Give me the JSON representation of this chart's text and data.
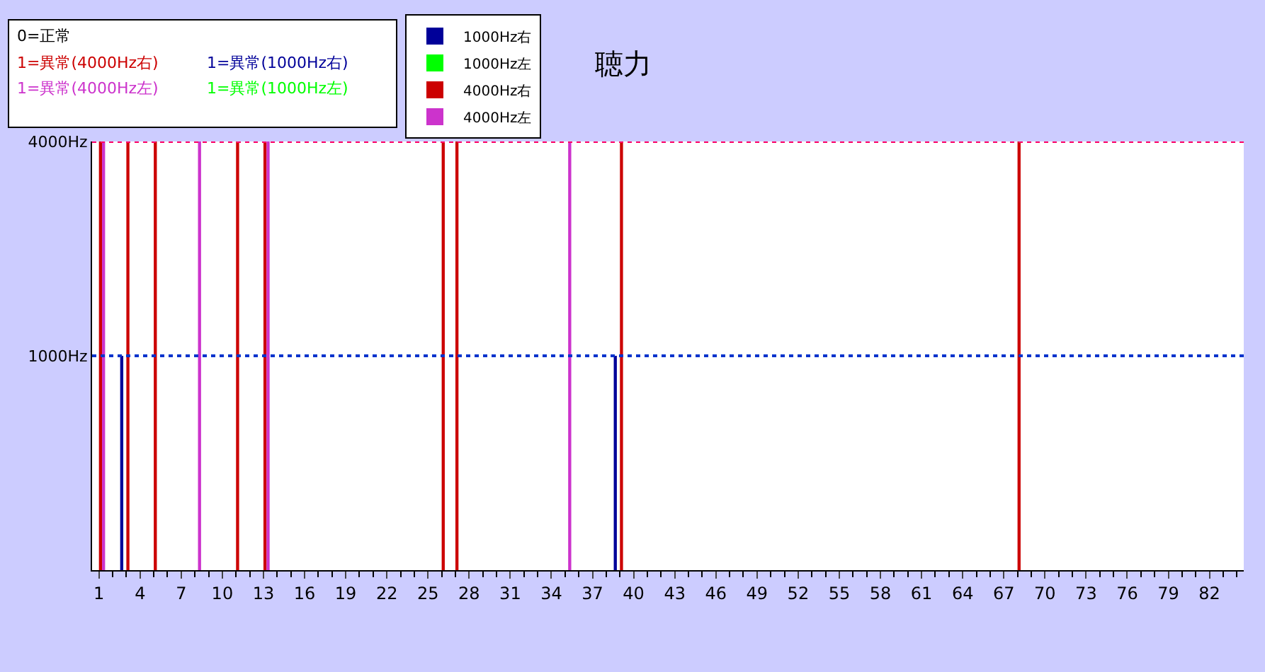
{
  "chart_data": {
    "type": "bar",
    "title": "聴力",
    "categories": [
      "1",
      null,
      null,
      "4",
      null,
      null,
      "7",
      null,
      null,
      "10",
      null,
      null,
      "13",
      null,
      null,
      "16",
      null,
      null,
      "19",
      null,
      null,
      "22",
      null,
      null,
      "25",
      null,
      null,
      "28",
      null,
      null,
      "31",
      null,
      null,
      "34",
      null,
      null,
      "37",
      null,
      null,
      "40",
      null,
      null,
      "43",
      null,
      null,
      "46",
      null,
      null,
      "49",
      null,
      null,
      "52",
      null,
      null,
      "55",
      null,
      null,
      "58",
      null,
      null,
      "61",
      null,
      null,
      "64",
      null,
      null,
      "67",
      null,
      null,
      "70",
      null,
      null,
      "73",
      null,
      null,
      "76",
      null,
      null,
      "79",
      null,
      null,
      "82",
      null,
      null
    ],
    "series": [
      {
        "name": "1000Hz右",
        "color": "#000099",
        "values": [
          null,
          null,
          1000,
          null,
          null,
          null,
          null,
          null,
          null,
          null,
          null,
          null,
          null,
          null,
          null,
          null,
          null,
          null,
          null,
          null,
          null,
          null,
          null,
          null,
          null,
          null,
          null,
          null,
          null,
          null,
          null,
          null,
          null,
          null,
          null,
          null,
          null,
          null,
          1000,
          null,
          null,
          null,
          null,
          null,
          null,
          null,
          null,
          null,
          null,
          null,
          null,
          null,
          null,
          null,
          null,
          null,
          null,
          null,
          null,
          null,
          null,
          null,
          null,
          null,
          null,
          null,
          null,
          null,
          null,
          null,
          null,
          null,
          null,
          null,
          null,
          null,
          null,
          null,
          null,
          null,
          null,
          null,
          null,
          null
        ]
      },
      {
        "name": "1000Hz左",
        "color": "#00ff00",
        "values": [
          null,
          null,
          null,
          null,
          null,
          null,
          null,
          null,
          null,
          null,
          null,
          null,
          null,
          null,
          null,
          null,
          null,
          null,
          null,
          null,
          null,
          null,
          null,
          null,
          null,
          null,
          null,
          null,
          null,
          null,
          null,
          null,
          null,
          null,
          null,
          null,
          null,
          null,
          null,
          null,
          null,
          null,
          null,
          null,
          null,
          null,
          null,
          null,
          null,
          null,
          null,
          null,
          null,
          null,
          null,
          null,
          null,
          null,
          null,
          null,
          null,
          null,
          null,
          null,
          null,
          null,
          null,
          null,
          null,
          null,
          null,
          null,
          null,
          null,
          null,
          null,
          null,
          null,
          null,
          null,
          null,
          null,
          null,
          null
        ]
      },
      {
        "name": "4000Hz右",
        "color": "#cc0000",
        "values": [
          4000,
          null,
          4000,
          null,
          4000,
          null,
          null,
          null,
          null,
          null,
          4000,
          null,
          4000,
          null,
          null,
          null,
          null,
          null,
          null,
          null,
          null,
          null,
          null,
          null,
          null,
          4000,
          4000,
          null,
          null,
          null,
          null,
          null,
          null,
          null,
          null,
          null,
          null,
          null,
          4000,
          null,
          null,
          null,
          null,
          null,
          null,
          null,
          null,
          null,
          null,
          null,
          null,
          null,
          null,
          null,
          null,
          null,
          null,
          null,
          null,
          null,
          null,
          null,
          null,
          null,
          null,
          null,
          null,
          4000,
          null,
          null,
          null,
          null,
          null,
          null,
          null,
          null,
          null,
          null,
          null,
          null,
          null,
          null,
          null,
          null
        ]
      },
      {
        "name": "4000Hz左",
        "color": "#cc33cc",
        "values": [
          4000,
          null,
          null,
          null,
          null,
          null,
          null,
          4000,
          null,
          null,
          null,
          null,
          4000,
          null,
          null,
          null,
          null,
          null,
          null,
          null,
          null,
          null,
          null,
          null,
          null,
          null,
          null,
          null,
          null,
          null,
          null,
          null,
          null,
          null,
          4000,
          null,
          null,
          null,
          null,
          null,
          null,
          null,
          null,
          null,
          null,
          null,
          null,
          null,
          null,
          null,
          null,
          null,
          null,
          null,
          null,
          null,
          null,
          null,
          null,
          null,
          null,
          null,
          null,
          null,
          null,
          null,
          null,
          null,
          null,
          null,
          null,
          null,
          null,
          null,
          null,
          null,
          null,
          null,
          null,
          null,
          null,
          null,
          null,
          null
        ]
      }
    ],
    "log": true,
    "ylim": [
      250,
      4000
    ],
    "yticks": [
      {
        "value": 1000,
        "label": "1000Hz"
      },
      {
        "value": 4000,
        "label": "4000Hz"
      }
    ],
    "ref_lines": [
      {
        "axis": "y",
        "value": 1000,
        "label": null,
        "color": "#0033cc",
        "line_style": "dotted"
      },
      {
        "axis": "y",
        "value": 4000,
        "label": null,
        "color": "#ff0066",
        "line_style": "dotted"
      }
    ],
    "annotations": [
      "0=正常",
      "1=異常(4000Hz右)",
      "1=異常(1000Hz右)",
      "1=異常(4000Hz左)",
      "1=異常(1000Hz左)"
    ],
    "legend": "top left"
  }
}
